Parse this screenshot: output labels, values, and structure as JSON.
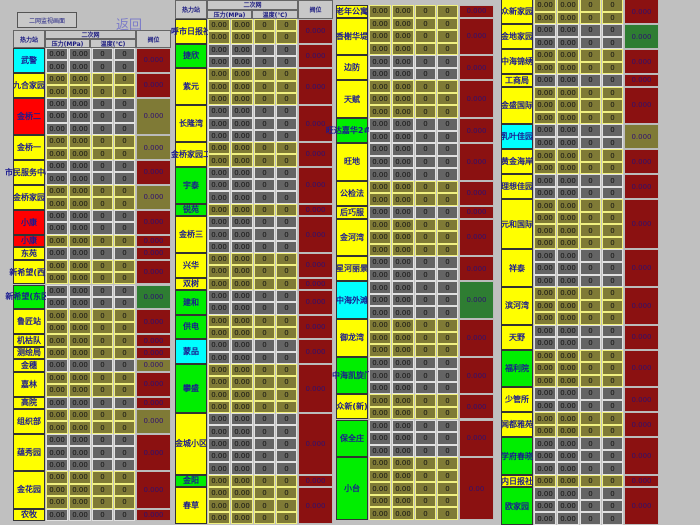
{
  "toolbar": {
    "monitor_button": "二网监视画面",
    "back_link": "返回"
  },
  "headers": {
    "station": "热力站",
    "secondary": "二次网",
    "pressure": "压力(MPa)",
    "temperature": "温度(℃)",
    "valve": "阀位"
  },
  "values": {
    "pressure": "0.00",
    "temperature": "0",
    "valve": "0.000"
  },
  "colors": {
    "yellow": "#ffff00",
    "red": "#ff0000",
    "green": "#00ee00",
    "cyan": "#00ffff",
    "maroon": "#8b1111",
    "olive": "#7f7a36",
    "valve_green": "#2e7d32",
    "gray": "#646464"
  },
  "columns": [
    {
      "header": true,
      "groups": [
        {
          "name": "武警",
          "bg": "cyan",
          "rows": 2,
          "theme": "g",
          "valve": "maroon"
        },
        {
          "name": "九合家园",
          "bg": "yellow",
          "rows": 2,
          "theme": "o",
          "valve": "maroon"
        },
        {
          "name": "金桥二",
          "bg": "red",
          "rows": 3,
          "theme": "g",
          "valve": "olive"
        },
        {
          "name": "金桥一",
          "bg": "yellow",
          "rows": 2,
          "theme": "o",
          "valve": "olive"
        },
        {
          "name": "市民服务中心",
          "bg": "yellow",
          "rows": 2,
          "theme": "g",
          "valve": "maroon"
        },
        {
          "name": "金桥家园",
          "bg": "yellow",
          "rows": 2,
          "theme": "o",
          "valve": "olive"
        },
        {
          "name": "小康",
          "bg": "red",
          "rows": 2,
          "theme": "g",
          "valve": "maroon"
        },
        {
          "name": "小康",
          "bg": "red",
          "rows": 1,
          "theme": "o",
          "valve": "maroon"
        },
        {
          "name": "东苑",
          "bg": "yellow",
          "rows": 1,
          "theme": "g",
          "valve": "maroon"
        },
        {
          "name": "新希望(西)",
          "bg": "yellow",
          "rows": 2,
          "theme": "o",
          "valve": "maroon"
        },
        {
          "name": "新希望(东区)",
          "bg": "green",
          "rows": 2,
          "theme": "g",
          "valve": "valve_green"
        },
        {
          "name": "鲁匠站",
          "bg": "yellow",
          "rows": 2,
          "theme": "o",
          "valve": "maroon"
        },
        {
          "name": "机枯队",
          "bg": "yellow",
          "rows": 1,
          "theme": "o",
          "valve": "maroon"
        },
        {
          "name": "测绘局",
          "bg": "yellow",
          "rows": 1,
          "theme": "o",
          "valve": "maroon"
        },
        {
          "name": "金穗",
          "bg": "yellow",
          "rows": 1,
          "theme": "g",
          "valve": "olive"
        },
        {
          "name": "嘉林",
          "bg": "yellow",
          "rows": 2,
          "theme": "o",
          "valve": "maroon"
        },
        {
          "name": "高院",
          "bg": "yellow",
          "rows": 1,
          "theme": "g",
          "valve": "maroon"
        },
        {
          "name": "组织部",
          "bg": "yellow",
          "rows": 2,
          "theme": "o",
          "valve": "olive"
        },
        {
          "name": "蕴秀园",
          "bg": "yellow",
          "rows": 3,
          "theme": "g",
          "valve": "maroon"
        },
        {
          "name": "金花园",
          "bg": "yellow",
          "rows": 3,
          "theme": "o",
          "valve": "maroon"
        },
        {
          "name": "农牧",
          "bg": "yellow",
          "rows": 1,
          "theme": "g",
          "valve": "maroon"
        }
      ]
    },
    {
      "header": true,
      "groups": [
        {
          "name": "呼市日报社",
          "bg": "yellow",
          "rows": 2,
          "theme": "o",
          "valve": "maroon"
        },
        {
          "name": "捷欣",
          "bg": "green",
          "rows": 2,
          "theme": "g",
          "valve": "maroon"
        },
        {
          "name": "紫元",
          "bg": "yellow",
          "rows": 3,
          "theme": "o",
          "valve": "maroon"
        },
        {
          "name": "长隆湾",
          "bg": "yellow",
          "rows": 3,
          "theme": "g",
          "valve": "maroon"
        },
        {
          "name": "金桥家园二",
          "bg": "yellow",
          "rows": 2,
          "theme": "o",
          "valve": "maroon"
        },
        {
          "name": "宇泰",
          "bg": "green",
          "rows": 3,
          "theme": "g",
          "valve": "maroon"
        },
        {
          "name": "锐苑",
          "bg": "green",
          "rows": 1,
          "theme": "o",
          "valve": "maroon"
        },
        {
          "name": "金桥三",
          "bg": "yellow",
          "rows": 3,
          "theme": "g",
          "valve": "maroon"
        },
        {
          "name": "兴华",
          "bg": "yellow",
          "rows": 2,
          "theme": "o",
          "valve": "maroon"
        },
        {
          "name": "双树",
          "bg": "yellow",
          "rows": 1,
          "theme": "o",
          "valve": "maroon"
        },
        {
          "name": "建和",
          "bg": "green",
          "rows": 2,
          "theme": "g",
          "valve": "maroon"
        },
        {
          "name": "供电",
          "bg": "green",
          "rows": 2,
          "theme": "o",
          "valve": "maroon"
        },
        {
          "name": "蒙品",
          "bg": "cyan",
          "rows": 2,
          "theme": "g",
          "valve": "maroon"
        },
        {
          "name": "攀盛",
          "bg": "green",
          "rows": 4,
          "theme": "o",
          "valve": "maroon"
        },
        {
          "name": "金城小区",
          "bg": "yellow",
          "rows": 5,
          "theme": "g",
          "valve": "maroon"
        },
        {
          "name": "金阳",
          "bg": "green",
          "rows": 1,
          "theme": "o",
          "valve": "maroon"
        },
        {
          "name": "春草",
          "bg": "yellow",
          "rows": 3,
          "theme": "o",
          "valve": "maroon"
        }
      ]
    },
    {
      "header": false,
      "groups": [
        {
          "name": "老年公寓",
          "bg": "yellow",
          "rows": 1,
          "theme": "o",
          "valve": "maroon"
        },
        {
          "name": "香榭华堤",
          "bg": "yellow",
          "rows": 3,
          "theme": "o",
          "valve": "maroon"
        },
        {
          "name": "边防",
          "bg": "yellow",
          "rows": 2,
          "theme": "g",
          "valve": "maroon"
        },
        {
          "name": "天赋",
          "bg": "yellow",
          "rows": 3,
          "theme": "o",
          "valve": "maroon"
        },
        {
          "name": "旺达嘉华2#站",
          "bg": "green",
          "rows": 2,
          "theme": "g",
          "valve": "maroon"
        },
        {
          "name": "旺地",
          "bg": "yellow",
          "rows": 3,
          "theme": "g",
          "valve": "maroon"
        },
        {
          "name": "公检法",
          "bg": "yellow",
          "rows": 2,
          "theme": "o",
          "valve": "maroon"
        },
        {
          "name": "后巧服",
          "bg": "yellow",
          "rows": 1,
          "theme": "g",
          "valve": "maroon"
        },
        {
          "name": "金河湾",
          "bg": "yellow",
          "rows": 3,
          "theme": "o",
          "valve": "maroon"
        },
        {
          "name": "星河丽景",
          "bg": "yellow",
          "rows": 2,
          "theme": "g",
          "valve": "maroon"
        },
        {
          "name": "中海外滩",
          "bg": "cyan",
          "rows": 3,
          "theme": "g",
          "valve": "valve_green"
        },
        {
          "name": "御龙湾",
          "bg": "yellow",
          "rows": 3,
          "theme": "o",
          "valve": "maroon"
        },
        {
          "name": "中海凯旋门",
          "bg": "green",
          "rows": 3,
          "theme": "g",
          "valve": "maroon"
        },
        {
          "name": "众新(新)",
          "bg": "yellow",
          "rows": 2,
          "theme": "o",
          "valve": "maroon"
        },
        {
          "name": "保全庄",
          "bg": "green",
          "rows": 3,
          "theme": "g",
          "valve": "maroon"
        },
        {
          "name": "小台",
          "bg": "green",
          "rows": 5,
          "theme": "o",
          "valve": "maroon",
          "valve_text": "0.00"
        }
      ]
    },
    {
      "header": false,
      "groups": [
        {
          "name": "众新家园",
          "bg": "yellow",
          "rows": 2,
          "theme": "o",
          "valve": "maroon"
        },
        {
          "name": "金地家园",
          "bg": "yellow",
          "rows": 2,
          "theme": "g",
          "valve": "valve_green"
        },
        {
          "name": "中海锦绣",
          "bg": "yellow",
          "rows": 2,
          "theme": "o",
          "valve": "maroon"
        },
        {
          "name": "工商局",
          "bg": "yellow",
          "rows": 1,
          "theme": "g",
          "valve": "maroon"
        },
        {
          "name": "金盛国际",
          "bg": "yellow",
          "rows": 3,
          "theme": "o",
          "valve": "maroon"
        },
        {
          "name": "乳叶佳园",
          "bg": "cyan",
          "rows": 2,
          "theme": "g",
          "valve": "olive"
        },
        {
          "name": "黄金海岸",
          "bg": "yellow",
          "rows": 2,
          "theme": "o",
          "valve": "maroon"
        },
        {
          "name": "理想佳园",
          "bg": "yellow",
          "rows": 2,
          "theme": "g",
          "valve": "maroon"
        },
        {
          "name": "元和国际",
          "bg": "yellow",
          "rows": 4,
          "theme": "o",
          "valve": "maroon"
        },
        {
          "name": "祥泰",
          "bg": "yellow",
          "rows": 3,
          "theme": "g",
          "valve": "maroon"
        },
        {
          "name": "滨河湾",
          "bg": "yellow",
          "rows": 3,
          "theme": "o",
          "valve": "maroon"
        },
        {
          "name": "天野",
          "bg": "yellow",
          "rows": 2,
          "theme": "g",
          "valve": "maroon"
        },
        {
          "name": "福利院",
          "bg": "green",
          "rows": 3,
          "theme": "o",
          "valve": "maroon"
        },
        {
          "name": "少管所",
          "bg": "yellow",
          "rows": 2,
          "theme": "g",
          "valve": "maroon"
        },
        {
          "name": "闻都雅苑",
          "bg": "yellow",
          "rows": 2,
          "theme": "o",
          "valve": "maroon"
        },
        {
          "name": "学府春晓",
          "bg": "green",
          "rows": 3,
          "theme": "g",
          "valve": "maroon"
        },
        {
          "name": "内日报社",
          "bg": "yellow",
          "rows": 1,
          "theme": "o",
          "valve": "maroon"
        },
        {
          "name": "欧家园",
          "bg": "green",
          "rows": 3,
          "theme": "g",
          "valve": "maroon"
        }
      ]
    }
  ]
}
